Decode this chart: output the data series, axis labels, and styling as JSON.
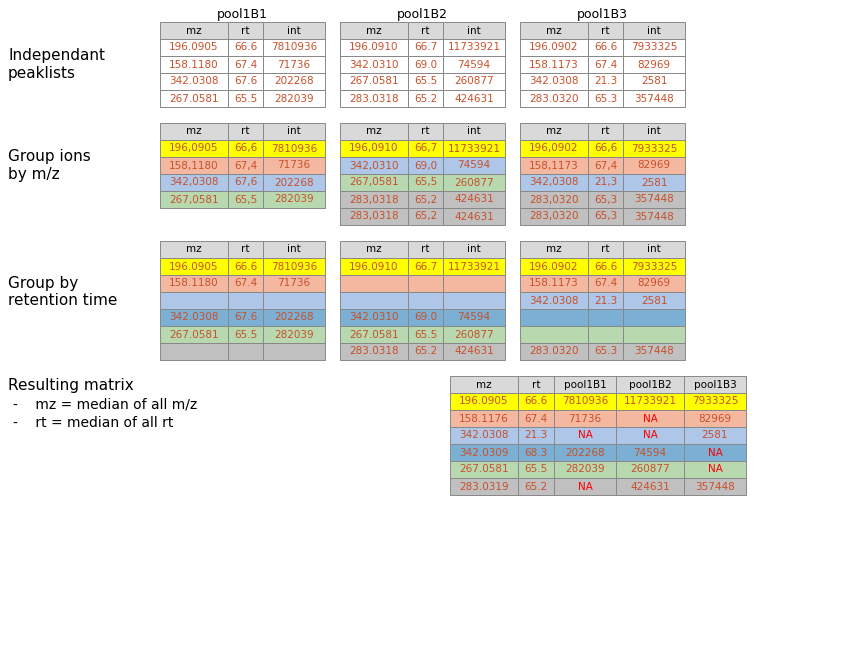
{
  "pool_labels": [
    "pool1B1",
    "pool1B2",
    "pool1B3"
  ],
  "col_headers": [
    "mz",
    "rt",
    "int"
  ],
  "row1_pool1": [
    [
      "196.0905",
      "66.6",
      "7810936"
    ],
    [
      "158.1180",
      "67.4",
      "71736"
    ],
    [
      "342.0308",
      "67.6",
      "202268"
    ],
    [
      "267.0581",
      "65.5",
      "282039"
    ]
  ],
  "row1_pool2": [
    [
      "196.0910",
      "66.7",
      "11733921"
    ],
    [
      "342.0310",
      "69.0",
      "74594"
    ],
    [
      "267.0581",
      "65.5",
      "260877"
    ],
    [
      "283.0318",
      "65.2",
      "424631"
    ]
  ],
  "row1_pool3": [
    [
      "196.0902",
      "66.6",
      "7933325"
    ],
    [
      "158.1173",
      "67.4",
      "82969"
    ],
    [
      "342.0308",
      "21.3",
      "2581"
    ],
    [
      "283.0320",
      "65.3",
      "357448"
    ]
  ],
  "row2_pool1": [
    [
      "196,0905",
      "66,6",
      "7810936"
    ],
    [
      "158,1180",
      "67,4",
      "71736"
    ],
    [
      "342,0308",
      "67,6",
      "202268"
    ],
    [
      "267,0581",
      "65,5",
      "282039"
    ]
  ],
  "row2_pool2": [
    [
      "196,0910",
      "66,7",
      "11733921"
    ],
    [
      "342,0310",
      "69,0",
      "74594"
    ],
    [
      "267,0581",
      "65,5",
      "260877"
    ],
    [
      "283,0318",
      "65,2",
      "424631"
    ]
  ],
  "row2_pool3": [
    [
      "196,0902",
      "66,6",
      "7933325"
    ],
    [
      "158,1173",
      "67,4",
      "82969"
    ],
    [
      "342,0308",
      "21,3",
      "2581"
    ],
    [
      "283,0320",
      "65,3",
      "357448"
    ]
  ],
  "row2_pool1_colors": [
    "#ffff00",
    "#f4b8a0",
    "#aec6e8",
    "#b8d9b0"
  ],
  "row2_pool2_colors": [
    "#ffff00",
    "#aec6e8",
    "#b8d9b0",
    "#c0c0c0"
  ],
  "row2_pool3_colors": [
    "#ffff00",
    "#f4b8a0",
    "#aec6e8",
    "#c0c0c0"
  ],
  "row3_pool1": [
    [
      "196.0905",
      "66.6",
      "7810936"
    ],
    [
      "158.1180",
      "67.4",
      "71736"
    ],
    [
      "",
      "",
      ""
    ],
    [
      "342.0308",
      "67.6",
      "202268"
    ],
    [
      "267.0581",
      "65.5",
      "282039"
    ],
    [
      "",
      "",
      ""
    ]
  ],
  "row3_pool2": [
    [
      "196.0910",
      "66.7",
      "11733921"
    ],
    [
      "",
      "",
      ""
    ],
    [
      "",
      "",
      ""
    ],
    [
      "342.0310",
      "69.0",
      "74594"
    ],
    [
      "267.0581",
      "65.5",
      "260877"
    ],
    [
      "283.0318",
      "65.2",
      "424631"
    ]
  ],
  "row3_pool3": [
    [
      "196.0902",
      "66.6",
      "7933325"
    ],
    [
      "158.1173",
      "67.4",
      "82969"
    ],
    [
      "342.0308",
      "21.3",
      "2581"
    ],
    [
      "",
      "",
      ""
    ],
    [
      "",
      "",
      ""
    ],
    [
      "283.0320",
      "65.3",
      "357448"
    ]
  ],
  "row3_colors": [
    "#ffff00",
    "#f4b8a0",
    "#aec6e8",
    "#7bafd4",
    "#b8d9b0",
    "#c0c0c0"
  ],
  "result_headers": [
    "mz",
    "rt",
    "pool1B1",
    "pool1B2",
    "pool1B3"
  ],
  "result_data": [
    [
      "196.0905",
      "66.6",
      "7810936",
      "11733921",
      "7933325"
    ],
    [
      "158.1176",
      "67.4",
      "71736",
      "NA",
      "82969"
    ],
    [
      "342.0308",
      "21.3",
      "NA",
      "NA",
      "2581"
    ],
    [
      "342.0309",
      "68.3",
      "202268",
      "74594",
      "NA"
    ],
    [
      "267.0581",
      "65.5",
      "282039",
      "260877",
      "NA"
    ],
    [
      "283.0319",
      "65.2",
      "NA",
      "424631",
      "357448"
    ]
  ],
  "result_colors": [
    "#ffff00",
    "#f4b8a0",
    "#aec6e8",
    "#7bafd4",
    "#b8d9b0",
    "#c0c0c0"
  ],
  "bg_color": "#ffffff",
  "text_color": "#c8502a",
  "na_color": "#ff0000",
  "header_bg": "#d9d9d9",
  "border_color": "#888888"
}
